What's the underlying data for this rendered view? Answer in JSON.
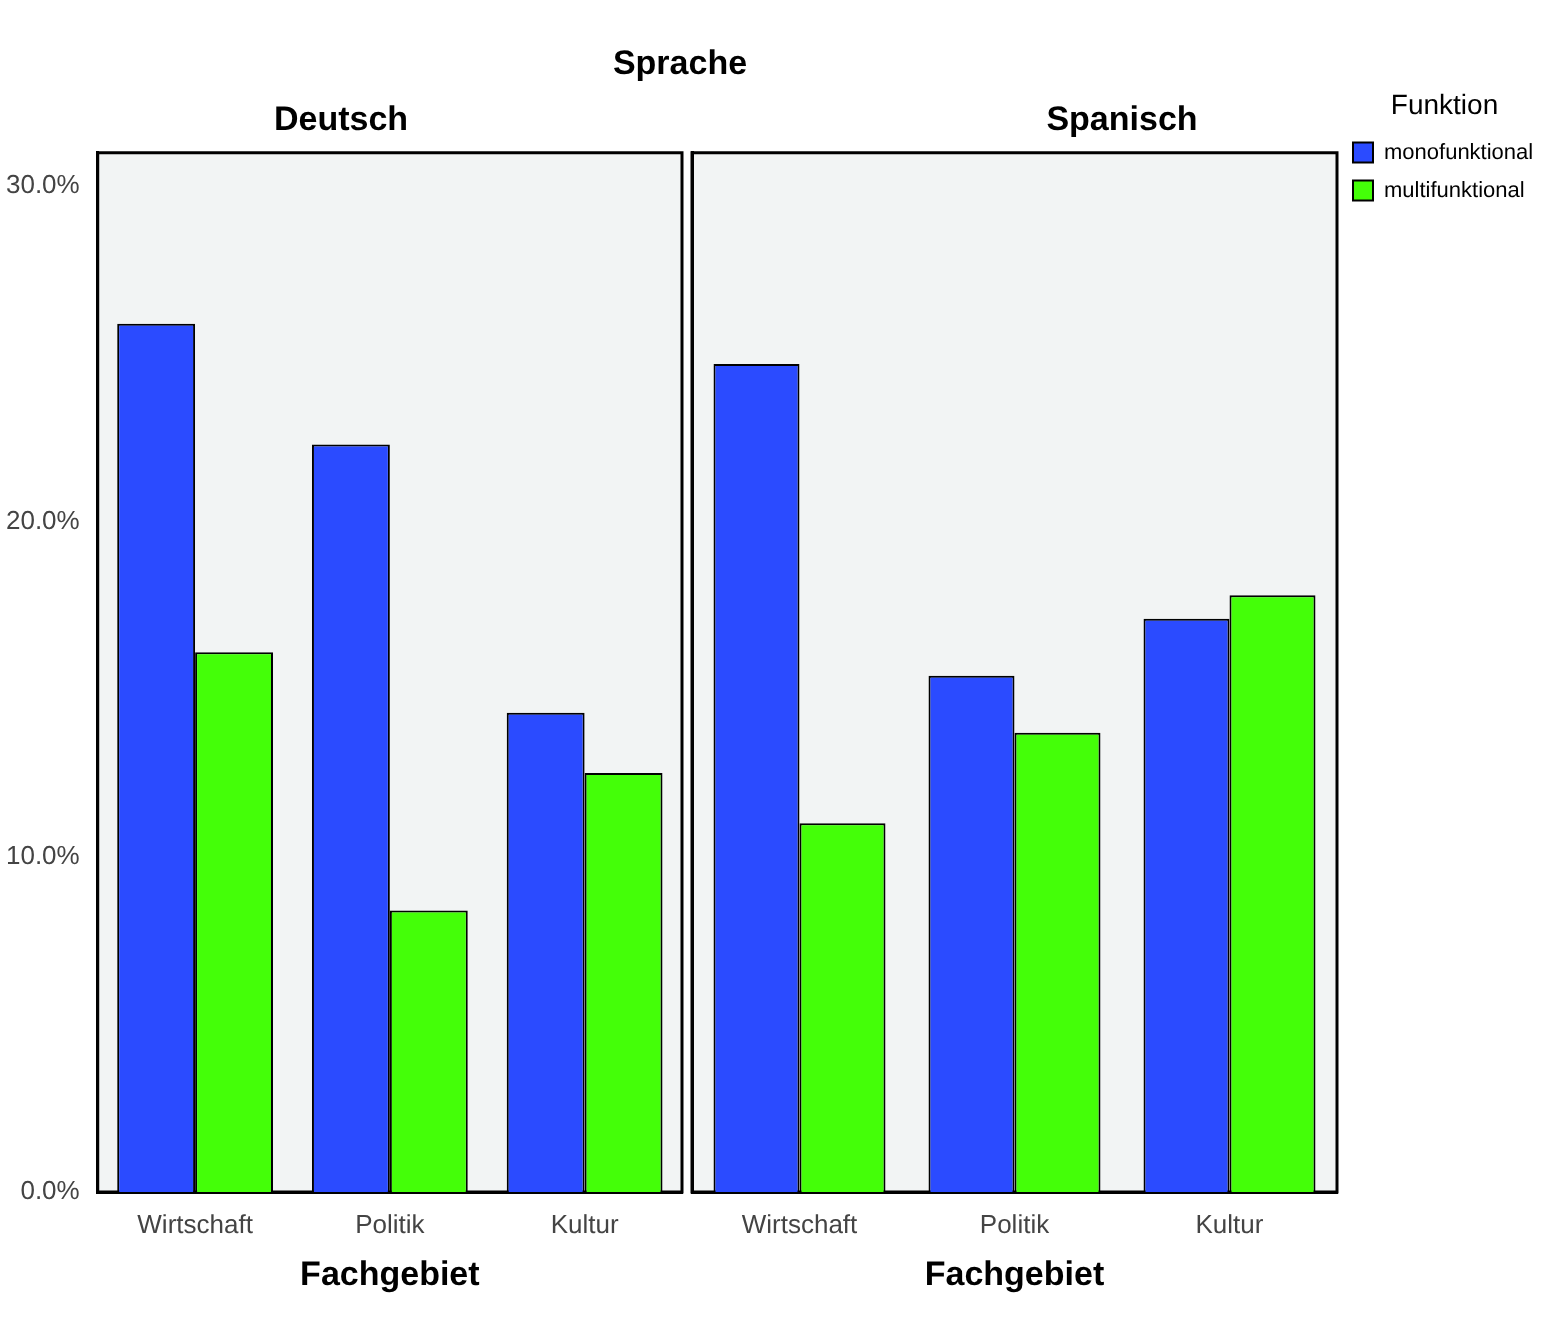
{
  "chart_data": [
    {
      "type": "bar",
      "title": "Deutsch",
      "xlabel": "Fachgebiet",
      "annotations": [
        "Sprache"
      ],
      "categories": [
        "Wirtschaft",
        "Politik",
        "Kultur"
      ],
      "series": [
        {
          "color": "#2b4bff",
          "values": [
            25.9,
            22.3,
            14.3
          ]
        },
        {
          "color": "#44ff08",
          "values": [
            16.1,
            8.4,
            12.5
          ]
        }
      ],
      "ylim": [
        0,
        31
      ],
      "yticks": [
        {
          "value": 0,
          "label": "0.0%"
        },
        {
          "value": 10,
          "label": "10.0%"
        },
        {
          "value": 20,
          "label": "20.0%"
        },
        {
          "value": 30,
          "label": "30.0%"
        }
      ],
      "grid": false,
      "legend": false
    },
    {
      "type": "bar",
      "title": "Spanisch",
      "xlabel": "Fachgebiet",
      "legend_title": "Funktion",
      "categories": [
        "Wirtschaft",
        "Politik",
        "Kultur"
      ],
      "series": [
        {
          "name": "monofunktional",
          "color": "#2b4bff",
          "values": [
            24.7,
            15.4,
            17.1
          ]
        },
        {
          "name": "multifunktional",
          "color": "#44ff08",
          "values": [
            11.0,
            13.7,
            17.8
          ]
        }
      ],
      "ylim": [
        0,
        31
      ],
      "grid": false,
      "legend": "top right",
      "tick_labels": "x"
    }
  ]
}
